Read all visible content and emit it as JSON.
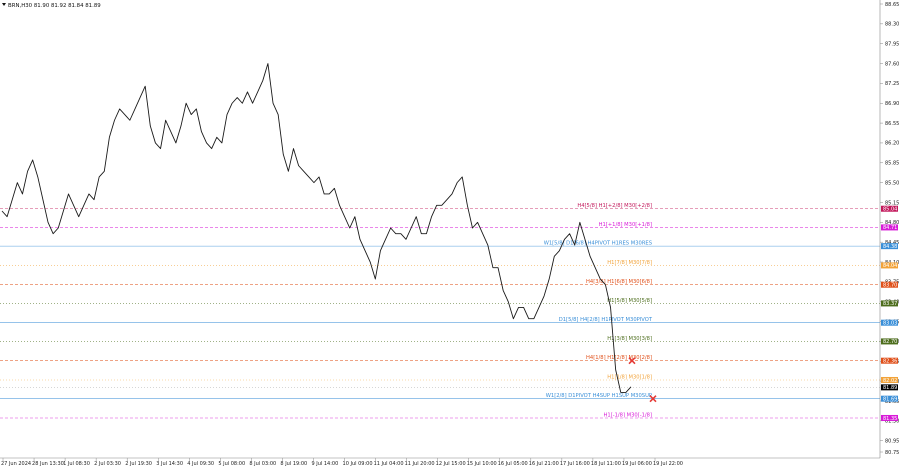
{
  "header": {
    "symbol_text": "BRN,H30  81.90  81.92  81.84  81.89"
  },
  "chart_data": {
    "type": "line",
    "title": "",
    "xlabel": "",
    "ylabel": "",
    "ylim": [
      80.75,
      88.65
    ],
    "y_ticks": [
      "88.65",
      "88.30",
      "87.95",
      "87.60",
      "87.25",
      "86.90",
      "86.55",
      "86.20",
      "85.85",
      "85.50",
      "85.15",
      "84.80",
      "84.45",
      "84.10",
      "83.75",
      "83.40",
      "83.05",
      "82.70",
      "82.35",
      "82.00",
      "81.65",
      "81.30",
      "80.95",
      "80.75"
    ],
    "x_ticks": [
      "27 Jun 2024",
      "28 Jun 13:30",
      "1 Jul 08:30",
      "2 Jul 03:30",
      "2 Jul 19:30",
      "3 Jul 14:30",
      "4 Jul 09:30",
      "5 Jul 08:00",
      "8 Jul 03:00",
      "8 Jul 19:00",
      "9 Jul 14:00",
      "10 Jul 09:00",
      "11 Jul 04:00",
      "11 Jul 20:00",
      "12 Jul 15:00",
      "15 Jul 10:00",
      "16 Jul 05:00",
      "16 Jul 21:00",
      "17 Jul 16:00",
      "18 Jul 11:00",
      "19 Jul 06:00",
      "19 Jul 22:00"
    ],
    "series": [
      {
        "values": [
          85.0,
          84.9,
          85.2,
          85.5,
          85.3,
          85.7,
          85.9,
          85.6,
          85.2,
          84.8,
          84.6,
          84.7,
          85.0,
          85.3,
          85.1,
          84.9,
          85.1,
          85.3,
          85.2,
          85.6,
          85.7,
          86.3,
          86.6,
          86.8,
          86.7,
          86.6,
          86.8,
          87.0,
          87.2,
          86.5,
          86.2,
          86.1,
          86.6,
          86.4,
          86.2,
          86.5,
          86.9,
          86.7,
          86.8,
          86.4,
          86.2,
          86.1,
          86.3,
          86.2,
          86.7,
          86.9,
          87.0,
          86.9,
          87.1,
          86.9,
          87.1,
          87.3,
          87.6,
          86.9,
          86.7,
          86.0,
          85.7,
          86.1,
          85.8,
          85.7,
          85.6,
          85.5,
          85.6,
          85.3,
          85.3,
          85.4,
          85.1,
          84.9,
          84.7,
          84.9,
          84.5,
          84.3,
          84.1,
          83.8,
          84.3,
          84.5,
          84.7,
          84.6,
          84.6,
          84.5,
          84.7,
          84.9,
          84.6,
          84.6,
          84.9,
          85.1,
          85.1,
          85.2,
          85.3,
          85.5,
          85.6,
          85.1,
          84.7,
          84.8,
          84.6,
          84.4,
          84.0,
          84.0,
          83.6,
          83.4,
          83.1,
          83.3,
          83.3,
          83.1,
          83.1,
          83.3,
          83.5,
          83.8,
          84.2,
          84.3,
          84.5,
          84.6,
          84.4,
          84.8,
          84.5,
          84.2,
          84.0,
          83.8,
          83.7,
          83.3,
          82.2,
          81.8,
          81.8,
          81.9
        ]
      }
    ],
    "levels": [
      {
        "label": "H4[5/8] H1[+2/8] M30[+2/8]",
        "value_text": "85.04",
        "value": 85.04,
        "color": "#c2185b",
        "style": "dash"
      },
      {
        "label": "H1[+1/8] M30[+1/8]",
        "value_text": "84.71",
        "value": 84.71,
        "color": "#d81bd8",
        "style": "dash"
      },
      {
        "label": "W1[5/8] D1[6/8] H4PIVOT H1RES M30RES",
        "value_text": "84.38",
        "value": 84.38,
        "color": "#3a8fd8",
        "style": "solid"
      },
      {
        "label": "H1[7/8] M30[7/8]",
        "value_text": "84.04",
        "value": 84.04,
        "color": "#f2a33a",
        "style": "dot"
      },
      {
        "label": "H4[3/8] H1[6/8] M30[6/8]",
        "value_text": "83.70",
        "value": 83.7,
        "color": "#e0501a",
        "style": "dash"
      },
      {
        "label": "H1[5/8] M30[5/8]",
        "value_text": "83.37",
        "value": 83.37,
        "color": "#4e6e1e",
        "style": "dot"
      },
      {
        "label": "D1[5/8] H4[2/8] H1PIVOT M30PIVOT",
        "value_text": "83.03",
        "value": 83.03,
        "color": "#3a8fd8",
        "style": "solid"
      },
      {
        "label": "H1[3/8] M30[3/8]",
        "value_text": "82.70",
        "value": 82.7,
        "color": "#4e6e1e",
        "style": "dot"
      },
      {
        "label": "H4[1/8] H1[2/8] M30[2/8]",
        "value_text": "82.36",
        "value": 82.36,
        "color": "#e0501a",
        "style": "dash"
      },
      {
        "label": "H1[1/8] M30[1/8]",
        "value_text": "82.02",
        "value": 82.02,
        "color": "#f2a33a",
        "style": "dot"
      },
      {
        "label": "W1[2/8] D1PIVOT H4SUP H1SUP M30SUP",
        "value_text": "81.69",
        "value": 81.69,
        "color": "#3a8fd8",
        "style": "solid"
      },
      {
        "label": "H1[-1/8] M30[-1/8]",
        "value_text": "81.35",
        "value": 81.35,
        "color": "#d81bd8",
        "style": "dash"
      }
    ],
    "current_price": {
      "value_text": "81.89",
      "value": 81.89
    },
    "markers": [
      {
        "value": 82.36,
        "color": "#e53935"
      },
      {
        "value": 81.69,
        "color": "#e53935"
      }
    ]
  }
}
